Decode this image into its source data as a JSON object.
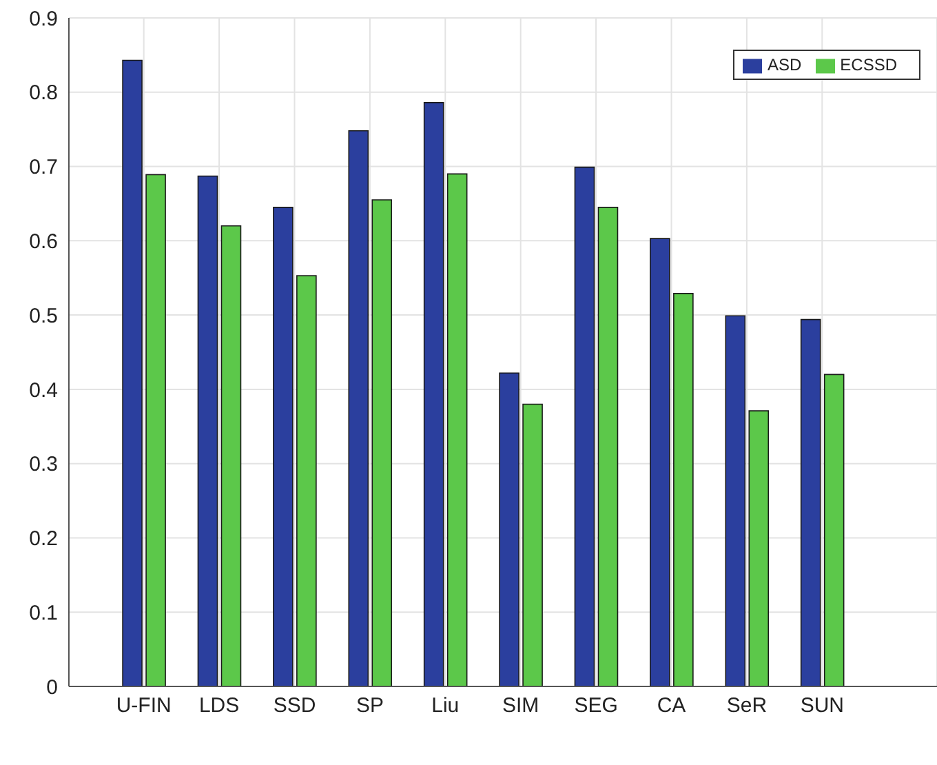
{
  "chart_data": {
    "type": "bar",
    "categories": [
      "U-FIN",
      "LDS",
      "SSD",
      "SP",
      "Liu",
      "SIM",
      "SEG",
      "CA",
      "SeR",
      "SUN"
    ],
    "series": [
      {
        "name": "ASD",
        "color": "#2b3f9e",
        "values": [
          0.843,
          0.687,
          0.645,
          0.748,
          0.786,
          0.422,
          0.699,
          0.603,
          0.499,
          0.494
        ]
      },
      {
        "name": "ECSSD",
        "color": "#5cc84a",
        "values": [
          0.689,
          0.62,
          0.553,
          0.655,
          0.69,
          0.38,
          0.645,
          0.529,
          0.371,
          0.42
        ]
      }
    ],
    "ylim": [
      0,
      0.9
    ],
    "yticks": [
      0,
      0.1,
      0.2,
      0.3,
      0.4,
      0.5,
      0.6,
      0.7,
      0.8,
      0.9
    ],
    "grid": true,
    "legend": "top right"
  }
}
